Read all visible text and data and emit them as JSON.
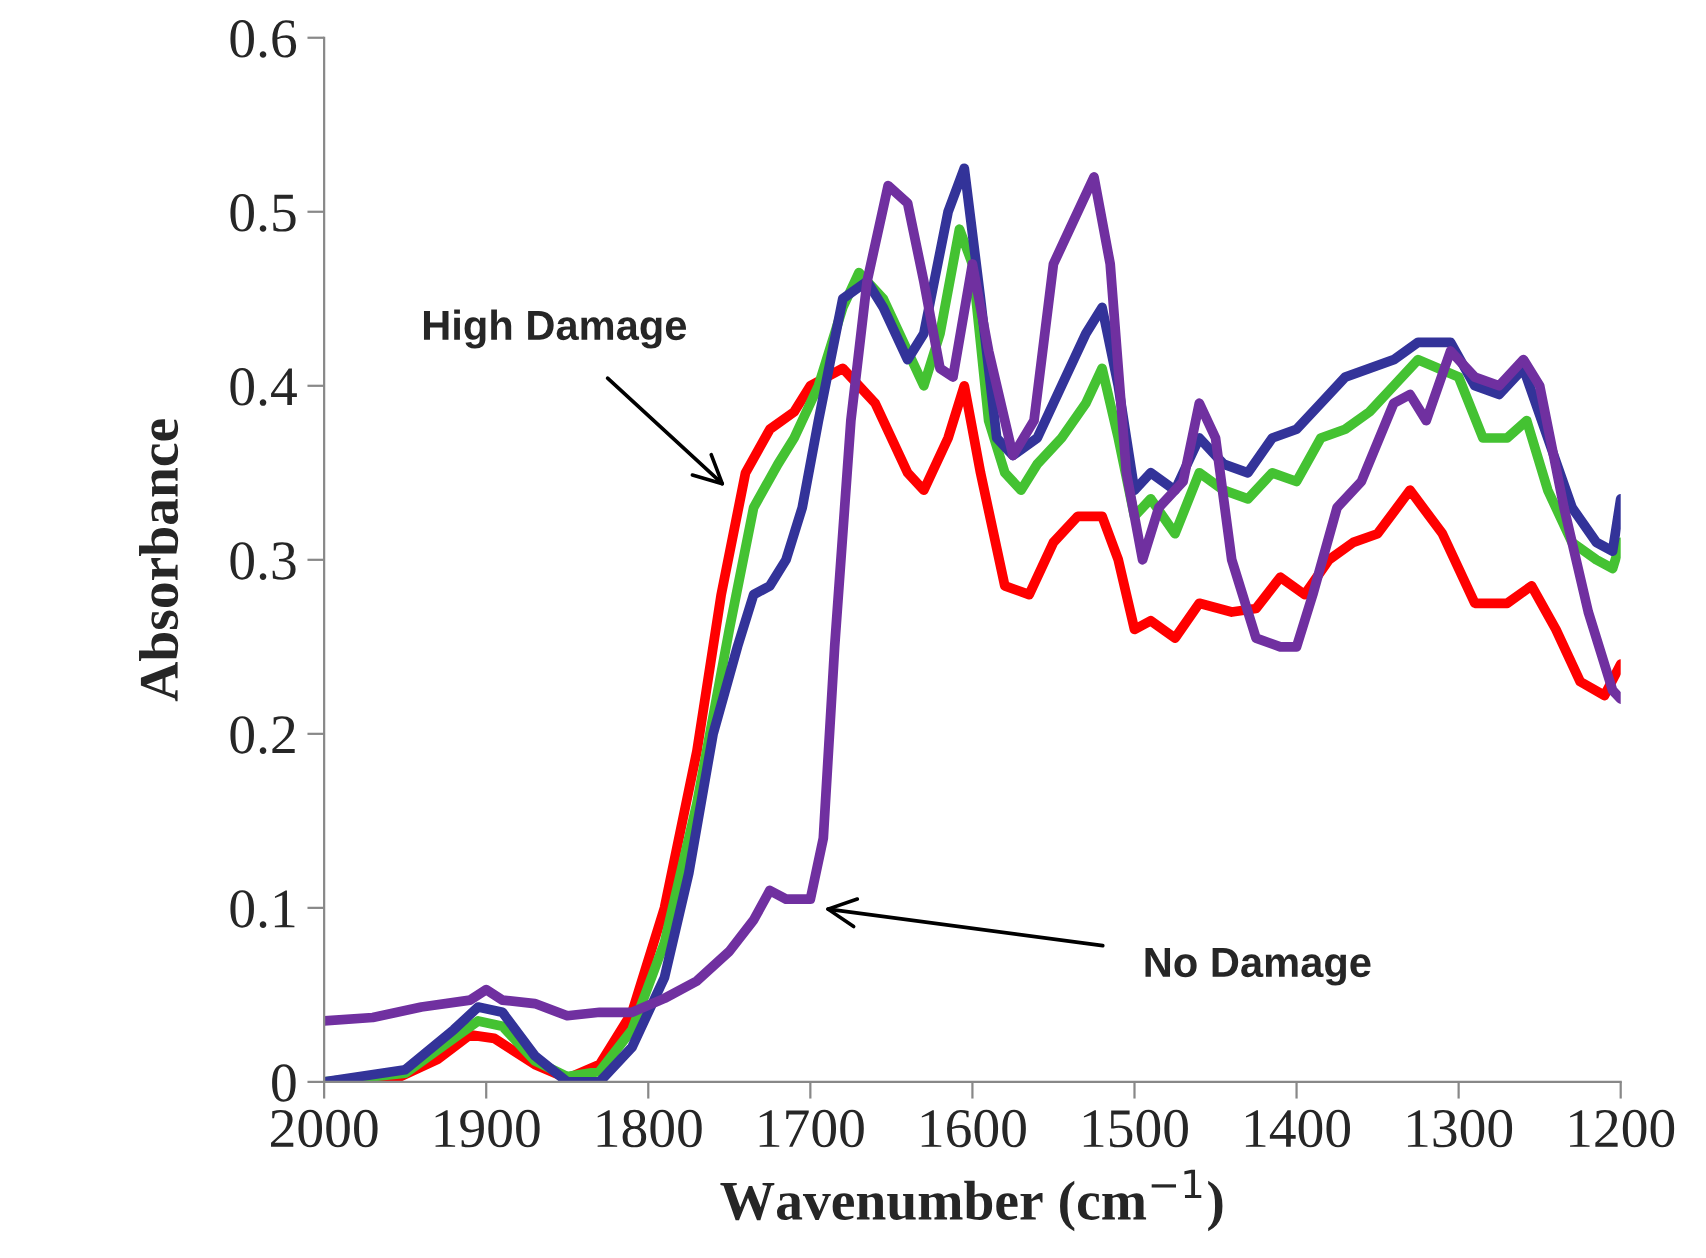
{
  "chart_data": {
    "type": "line",
    "xlabel": "Wavenumber (cm$^{−1}$)",
    "ylabel": "Absorbance",
    "xlim": [
      2000,
      1200
    ],
    "xticks": [
      2000,
      1900,
      1800,
      1700,
      1600,
      1500,
      1400,
      1300,
      1200
    ],
    "ylim": [
      0,
      0.6
    ],
    "yticks": [
      0,
      0.1,
      0.2,
      0.3,
      0.4,
      0.5,
      0.6
    ],
    "grid": false,
    "marker": "none",
    "line_style": "solid",
    "annotations": [
      {
        "text": "High Damage",
        "x": 1750,
        "y": 0.34
      },
      {
        "text": "No Damage",
        "x": 1695,
        "y": 0.1
      }
    ],
    "series": [
      {
        "color": "#ff0000",
        "x": [
          2000,
          1960,
          1930,
          1910,
          1895,
          1870,
          1850,
          1830,
          1810,
          1790,
          1770,
          1755,
          1740,
          1725,
          1710,
          1700,
          1680,
          1660,
          1640,
          1630,
          1615,
          1605,
          1595,
          1580,
          1565,
          1550,
          1535,
          1520,
          1510,
          1500,
          1490,
          1475,
          1460,
          1440,
          1425,
          1410,
          1395,
          1380,
          1365,
          1350,
          1330,
          1310,
          1290,
          1270,
          1255,
          1240,
          1225,
          1210,
          1200
        ],
        "values": [
          0.0,
          0.0,
          0.013,
          0.027,
          0.025,
          0.01,
          0.002,
          0.01,
          0.04,
          0.1,
          0.19,
          0.28,
          0.35,
          0.375,
          0.385,
          0.4,
          0.41,
          0.39,
          0.35,
          0.34,
          0.37,
          0.4,
          0.35,
          0.285,
          0.28,
          0.31,
          0.325,
          0.325,
          0.3,
          0.26,
          0.265,
          0.255,
          0.275,
          0.27,
          0.272,
          0.29,
          0.28,
          0.3,
          0.31,
          0.315,
          0.34,
          0.315,
          0.275,
          0.275,
          0.285,
          0.26,
          0.23,
          0.222,
          0.24
        ]
      },
      {
        "color": "#44c232",
        "x": [
          2000,
          1950,
          1920,
          1905,
          1890,
          1870,
          1850,
          1830,
          1810,
          1790,
          1770,
          1750,
          1735,
          1720,
          1710,
          1695,
          1680,
          1670,
          1655,
          1640,
          1630,
          1620,
          1608,
          1600,
          1590,
          1580,
          1570,
          1560,
          1545,
          1530,
          1520,
          1510,
          1500,
          1490,
          1475,
          1460,
          1445,
          1430,
          1415,
          1400,
          1385,
          1370,
          1355,
          1340,
          1325,
          1300,
          1285,
          1270,
          1258,
          1245,
          1230,
          1215,
          1205,
          1200
        ],
        "values": [
          0.0,
          0.005,
          0.025,
          0.035,
          0.032,
          0.012,
          0.003,
          0.006,
          0.03,
          0.08,
          0.16,
          0.26,
          0.33,
          0.355,
          0.37,
          0.4,
          0.445,
          0.465,
          0.45,
          0.42,
          0.4,
          0.43,
          0.49,
          0.47,
          0.38,
          0.35,
          0.34,
          0.355,
          0.37,
          0.39,
          0.41,
          0.37,
          0.325,
          0.335,
          0.315,
          0.35,
          0.34,
          0.335,
          0.35,
          0.345,
          0.37,
          0.375,
          0.385,
          0.4,
          0.415,
          0.405,
          0.37,
          0.37,
          0.38,
          0.34,
          0.31,
          0.3,
          0.295,
          0.31
        ]
      },
      {
        "color": "#333399",
        "x": [
          2000,
          1950,
          1920,
          1905,
          1890,
          1870,
          1850,
          1830,
          1810,
          1790,
          1775,
          1760,
          1745,
          1735,
          1725,
          1715,
          1705,
          1695,
          1680,
          1665,
          1655,
          1640,
          1630,
          1615,
          1605,
          1595,
          1585,
          1575,
          1560,
          1545,
          1530,
          1520,
          1510,
          1500,
          1490,
          1475,
          1460,
          1445,
          1430,
          1415,
          1400,
          1385,
          1370,
          1355,
          1340,
          1325,
          1305,
          1290,
          1275,
          1260,
          1245,
          1230,
          1215,
          1205,
          1200
        ],
        "values": [
          0.0,
          0.007,
          0.03,
          0.043,
          0.04,
          0.015,
          0.0,
          0.0,
          0.02,
          0.06,
          0.12,
          0.2,
          0.25,
          0.28,
          0.285,
          0.3,
          0.33,
          0.38,
          0.45,
          0.46,
          0.445,
          0.415,
          0.43,
          0.5,
          0.525,
          0.45,
          0.37,
          0.36,
          0.37,
          0.4,
          0.43,
          0.445,
          0.4,
          0.34,
          0.35,
          0.34,
          0.37,
          0.355,
          0.35,
          0.37,
          0.375,
          0.39,
          0.405,
          0.41,
          0.415,
          0.425,
          0.425,
          0.4,
          0.395,
          0.41,
          0.37,
          0.33,
          0.31,
          0.305,
          0.335
        ]
      },
      {
        "color": "#7030a0",
        "x": [
          2000,
          1970,
          1940,
          1910,
          1900,
          1890,
          1870,
          1850,
          1830,
          1810,
          1790,
          1770,
          1750,
          1735,
          1725,
          1715,
          1700,
          1692,
          1685,
          1675,
          1665,
          1652,
          1640,
          1630,
          1620,
          1612,
          1600,
          1590,
          1575,
          1562,
          1550,
          1540,
          1525,
          1515,
          1505,
          1495,
          1485,
          1470,
          1460,
          1450,
          1440,
          1425,
          1410,
          1400,
          1390,
          1375,
          1360,
          1340,
          1330,
          1320,
          1305,
          1290,
          1275,
          1260,
          1250,
          1235,
          1220,
          1205,
          1200
        ],
        "values": [
          0.035,
          0.037,
          0.043,
          0.047,
          0.053,
          0.047,
          0.045,
          0.038,
          0.04,
          0.04,
          0.048,
          0.058,
          0.075,
          0.093,
          0.11,
          0.105,
          0.105,
          0.14,
          0.25,
          0.38,
          0.46,
          0.515,
          0.505,
          0.46,
          0.41,
          0.405,
          0.47,
          0.42,
          0.36,
          0.38,
          0.47,
          0.49,
          0.52,
          0.47,
          0.35,
          0.3,
          0.33,
          0.345,
          0.39,
          0.37,
          0.3,
          0.255,
          0.25,
          0.25,
          0.28,
          0.33,
          0.345,
          0.39,
          0.395,
          0.38,
          0.42,
          0.405,
          0.4,
          0.415,
          0.4,
          0.33,
          0.27,
          0.225,
          0.22
        ]
      }
    ]
  }
}
